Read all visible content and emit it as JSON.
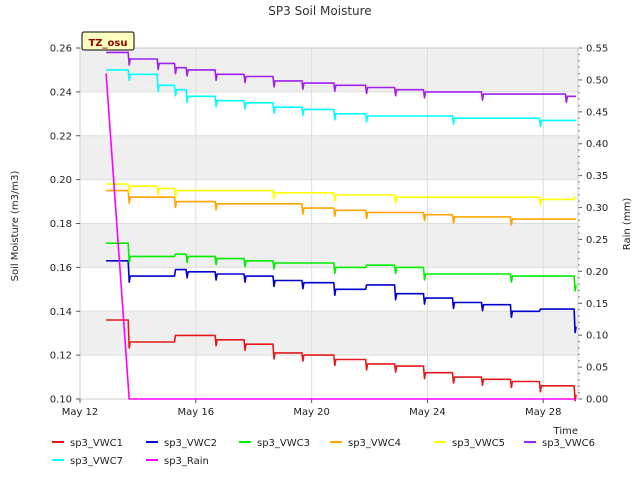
{
  "chart_data": {
    "type": "line",
    "title": "SP3 Soil Moisture",
    "xlabel": "Time",
    "ylabel": "Soil Moisture (m3/m3)",
    "y2label": "Rain (mm)",
    "badge": "TZ_osu",
    "xlim": [
      12,
      29.2
    ],
    "ylim": [
      0.1,
      0.26
    ],
    "y2lim": [
      0.0,
      0.55
    ],
    "x_ticks": [
      12,
      16,
      20,
      24,
      28
    ],
    "x_tick_labels": [
      "May 12",
      "May 16",
      "May 20",
      "May 24",
      "May 28"
    ],
    "y_ticks": [
      0.1,
      0.12,
      0.14,
      0.16,
      0.18,
      0.2,
      0.22,
      0.24,
      0.26
    ],
    "y_tick_labels": [
      "0.10",
      "0.12",
      "0.14",
      "0.16",
      "0.18",
      "0.20",
      "0.22",
      "0.24",
      "0.26"
    ],
    "y2_ticks": [
      0,
      0.05,
      0.1,
      0.15,
      0.2,
      0.25,
      0.3,
      0.35,
      0.4,
      0.45,
      0.5,
      0.55
    ],
    "y2_tick_labels": [
      "0.00",
      "0.05",
      "0.10",
      "0.15",
      "0.20",
      "0.25",
      "0.30",
      "0.35",
      "0.40",
      "0.45",
      "0.50",
      "0.55"
    ],
    "grid": true,
    "series": [
      {
        "name": "sp3_VWC1",
        "color": "#e31a1c",
        "axis": "left",
        "x": [
          12.9,
          13.7,
          14.7,
          15.3,
          15.7,
          16.7,
          17.7,
          18.7,
          19.7,
          20.8,
          21.9,
          22.9,
          23.9,
          24.9,
          25.9,
          26.9,
          27.9,
          28.8,
          29.1
        ],
        "y": [
          0.136,
          0.126,
          0.126,
          0.129,
          0.129,
          0.127,
          0.125,
          0.121,
          0.12,
          0.118,
          0.116,
          0.115,
          0.112,
          0.11,
          0.109,
          0.108,
          0.106,
          0.106,
          0.102
        ]
      },
      {
        "name": "sp3_VWC2",
        "color": "#0000cd",
        "axis": "left",
        "x": [
          12.9,
          13.7,
          14.7,
          15.3,
          15.7,
          16.7,
          17.7,
          18.7,
          19.7,
          20.8,
          21.9,
          22.9,
          23.9,
          24.9,
          25.9,
          26.9,
          27.9,
          28.8,
          29.1
        ],
        "y": [
          0.163,
          0.156,
          0.156,
          0.159,
          0.158,
          0.157,
          0.156,
          0.154,
          0.153,
          0.15,
          0.152,
          0.148,
          0.146,
          0.144,
          0.143,
          0.14,
          0.141,
          0.141,
          0.133
        ]
      },
      {
        "name": "sp3_VWC3",
        "color": "#00ee00",
        "axis": "left",
        "x": [
          12.9,
          13.7,
          14.7,
          15.3,
          15.7,
          16.7,
          17.7,
          18.7,
          19.7,
          20.8,
          21.9,
          22.9,
          23.9,
          24.9,
          25.9,
          26.9,
          27.9,
          28.8,
          29.1
        ],
        "y": [
          0.171,
          0.165,
          0.165,
          0.166,
          0.165,
          0.164,
          0.163,
          0.162,
          0.162,
          0.16,
          0.161,
          0.16,
          0.157,
          0.157,
          0.157,
          0.156,
          0.156,
          0.156,
          0.152
        ]
      },
      {
        "name": "sp3_VWC4",
        "color": "#ffa500",
        "axis": "left",
        "x": [
          12.9,
          13.7,
          14.7,
          15.3,
          15.7,
          16.7,
          17.7,
          18.7,
          19.7,
          20.8,
          21.9,
          22.9,
          23.9,
          24.9,
          25.9,
          26.9,
          27.9,
          28.8,
          29.1
        ],
        "y": [
          0.195,
          0.192,
          0.192,
          0.19,
          0.19,
          0.189,
          0.189,
          0.189,
          0.187,
          0.186,
          0.185,
          0.185,
          0.184,
          0.183,
          0.183,
          0.182,
          0.182,
          0.182,
          0.182
        ]
      },
      {
        "name": "sp3_VWC5",
        "color": "#ffff00",
        "axis": "left",
        "x": [
          12.9,
          13.7,
          14.7,
          15.3,
          15.7,
          16.7,
          17.7,
          18.7,
          19.7,
          20.8,
          21.9,
          22.9,
          23.9,
          24.9,
          25.9,
          26.9,
          27.9,
          28.8,
          29.1
        ],
        "y": [
          0.198,
          0.197,
          0.196,
          0.195,
          0.195,
          0.195,
          0.195,
          0.194,
          0.194,
          0.193,
          0.193,
          0.192,
          0.192,
          0.192,
          0.192,
          0.192,
          0.191,
          0.191,
          0.192
        ]
      },
      {
        "name": "sp3_VWC6",
        "color": "#a020f0",
        "axis": "left",
        "x": [
          12.9,
          13.7,
          14.7,
          15.3,
          15.7,
          16.7,
          17.7,
          18.7,
          19.7,
          20.8,
          21.9,
          22.9,
          23.9,
          24.9,
          25.9,
          26.9,
          27.9,
          28.8,
          29.1
        ],
        "y": [
          0.258,
          0.255,
          0.253,
          0.251,
          0.25,
          0.248,
          0.247,
          0.245,
          0.244,
          0.243,
          0.242,
          0.241,
          0.24,
          0.24,
          0.239,
          0.239,
          0.239,
          0.238,
          0.238
        ]
      },
      {
        "name": "sp3_VWC7",
        "color": "#00ffff",
        "axis": "left",
        "x": [
          12.9,
          13.7,
          14.7,
          15.3,
          15.7,
          16.7,
          17.7,
          18.7,
          19.7,
          20.8,
          21.9,
          22.9,
          23.9,
          24.9,
          25.9,
          26.9,
          27.9,
          28.8,
          29.1
        ],
        "y": [
          0.25,
          0.248,
          0.243,
          0.241,
          0.238,
          0.236,
          0.235,
          0.233,
          0.232,
          0.23,
          0.229,
          0.229,
          0.229,
          0.228,
          0.228,
          0.228,
          0.227,
          0.227,
          0.227
        ]
      },
      {
        "name": "sp3_Rain",
        "color": "#ff00ff",
        "axis": "right",
        "x": [
          12.9,
          13.7,
          14.7,
          16.7,
          18.7,
          20.7,
          22.7,
          24.7,
          26.7,
          28.7,
          29.1
        ],
        "y": [
          0.51,
          0.0,
          0.0,
          0.0,
          0.0,
          0.0,
          0.0,
          0.0,
          0.0,
          0.0,
          0.0
        ]
      }
    ]
  }
}
